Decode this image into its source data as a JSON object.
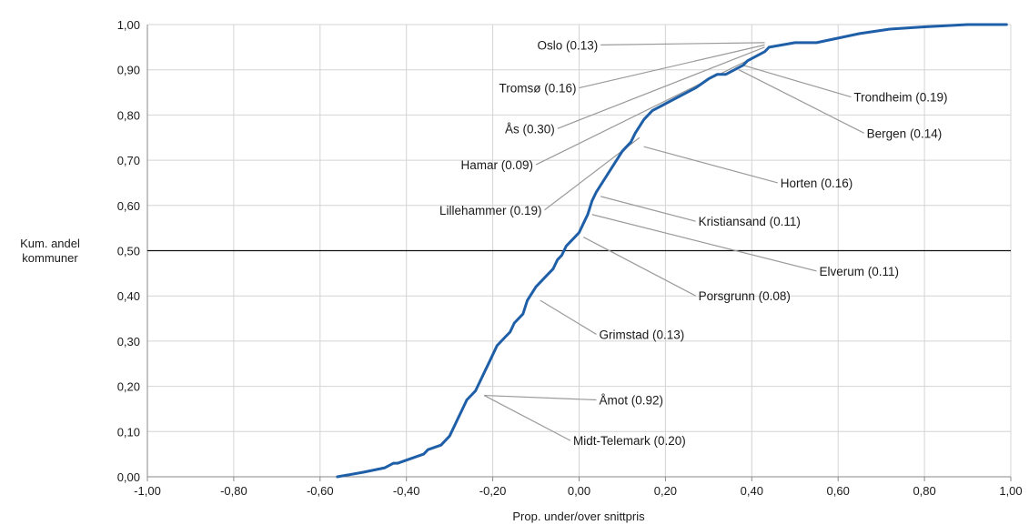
{
  "chart_data": {
    "type": "line",
    "title": "",
    "xlabel": "Prop. under/over snittpris",
    "ylabel_lines": [
      "Kum. andel",
      "kommuner"
    ],
    "xlim": [
      -1.0,
      1.0
    ],
    "ylim": [
      0.0,
      1.0
    ],
    "x_ticks": [
      "-1,00",
      "-0,80",
      "-0,60",
      "-0,40",
      "-0,20",
      "0,00",
      "0,20",
      "0,40",
      "0,60",
      "0,80",
      "1,00"
    ],
    "y_ticks": [
      "0,00",
      "0,10",
      "0,20",
      "0,30",
      "0,40",
      "0,50",
      "0,60",
      "0,70",
      "0,80",
      "0,90",
      "1,00"
    ],
    "grid": true,
    "reference_line_y": 0.5,
    "series": [
      {
        "color": "#1f5fa8",
        "x": [
          -0.56,
          -0.5,
          -0.45,
          -0.43,
          -0.42,
          -0.39,
          -0.36,
          -0.35,
          -0.32,
          -0.3,
          -0.29,
          -0.28,
          -0.27,
          -0.26,
          -0.25,
          -0.24,
          -0.23,
          -0.22,
          -0.21,
          -0.2,
          -0.19,
          -0.17,
          -0.16,
          -0.15,
          -0.13,
          -0.12,
          -0.1,
          -0.08,
          -0.06,
          -0.05,
          -0.04,
          -0.03,
          -0.02,
          -0.01,
          0.0,
          0.01,
          0.02,
          0.03,
          0.04,
          0.06,
          0.08,
          0.1,
          0.12,
          0.13,
          0.15,
          0.17,
          0.19,
          0.21,
          0.23,
          0.25,
          0.27,
          0.3,
          0.32,
          0.34,
          0.36,
          0.38,
          0.39,
          0.41,
          0.43,
          0.44,
          0.5,
          0.55,
          0.6,
          0.65,
          0.72,
          0.8,
          0.9,
          0.99
        ],
        "y": [
          0.0,
          0.01,
          0.02,
          0.03,
          0.03,
          0.04,
          0.05,
          0.06,
          0.07,
          0.09,
          0.11,
          0.13,
          0.15,
          0.17,
          0.18,
          0.19,
          0.21,
          0.23,
          0.25,
          0.27,
          0.29,
          0.31,
          0.32,
          0.34,
          0.36,
          0.39,
          0.42,
          0.44,
          0.46,
          0.48,
          0.49,
          0.51,
          0.52,
          0.53,
          0.54,
          0.56,
          0.58,
          0.61,
          0.63,
          0.66,
          0.69,
          0.72,
          0.74,
          0.76,
          0.79,
          0.81,
          0.82,
          0.83,
          0.84,
          0.85,
          0.86,
          0.88,
          0.89,
          0.89,
          0.9,
          0.91,
          0.92,
          0.93,
          0.94,
          0.95,
          0.96,
          0.96,
          0.97,
          0.98,
          0.99,
          0.995,
          1.0,
          1.0
        ]
      }
    ],
    "annotations": [
      {
        "text": "Oslo (0.13)",
        "x": 0.43,
        "y": 0.96,
        "label_x": 0.05,
        "label_y": 0.955,
        "anchor": "end"
      },
      {
        "text": "Tromsø (0.16)",
        "x": 0.43,
        "y": 0.955,
        "label_x": 0.0,
        "label_y": 0.86,
        "anchor": "end"
      },
      {
        "text": "Ås (0.30)",
        "x": 0.43,
        "y": 0.95,
        "label_x": -0.05,
        "label_y": 0.77,
        "anchor": "end"
      },
      {
        "text": "Hamar (0.09)",
        "x": 0.41,
        "y": 0.93,
        "label_x": -0.1,
        "label_y": 0.69,
        "anchor": "end"
      },
      {
        "text": "Lillehammer (0.19)",
        "x": 0.14,
        "y": 0.75,
        "label_x": -0.08,
        "label_y": 0.59,
        "anchor": "end"
      },
      {
        "text": "Trondheim (0.19)",
        "x": 0.38,
        "y": 0.91,
        "label_x": 0.63,
        "label_y": 0.84,
        "anchor": "start"
      },
      {
        "text": "Bergen (0.14)",
        "x": 0.37,
        "y": 0.9,
        "label_x": 0.66,
        "label_y": 0.76,
        "anchor": "start"
      },
      {
        "text": "Horten (0.16)",
        "x": 0.15,
        "y": 0.73,
        "label_x": 0.46,
        "label_y": 0.65,
        "anchor": "start"
      },
      {
        "text": "Kristiansand (0.11)",
        "x": 0.05,
        "y": 0.62,
        "label_x": 0.27,
        "label_y": 0.565,
        "anchor": "start"
      },
      {
        "text": "Elverum (0.11)",
        "x": 0.03,
        "y": 0.58,
        "label_x": 0.55,
        "label_y": 0.455,
        "anchor": "start"
      },
      {
        "text": "Porsgrunn (0.08)",
        "x": 0.01,
        "y": 0.53,
        "label_x": 0.27,
        "label_y": 0.4,
        "anchor": "start"
      },
      {
        "text": "Grimstad (0.13)",
        "x": -0.09,
        "y": 0.39,
        "label_x": 0.04,
        "label_y": 0.315,
        "anchor": "start"
      },
      {
        "text": "Åmot (0.92)",
        "x": -0.22,
        "y": 0.18,
        "label_x": 0.04,
        "label_y": 0.17,
        "anchor": "start"
      },
      {
        "text": "Midt-Telemark (0.20)",
        "x": -0.22,
        "y": 0.18,
        "label_x": -0.02,
        "label_y": 0.08,
        "anchor": "start"
      }
    ]
  }
}
